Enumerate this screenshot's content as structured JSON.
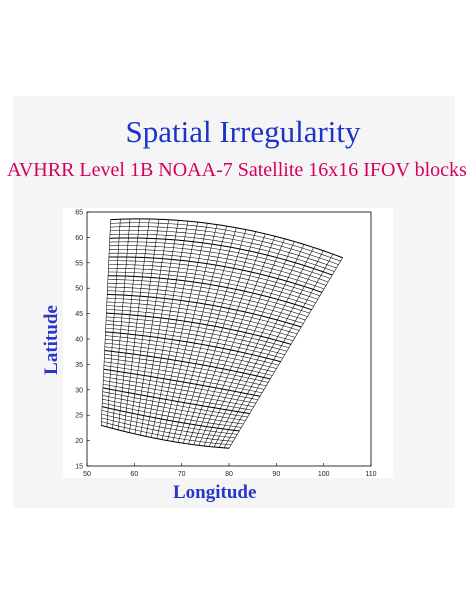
{
  "slide": {
    "title": "Spatial Irregularity",
    "subtitle": "AVHRR Level 1B NOAA-7 Satellite 16x16 IFOV blocks"
  },
  "chart_data": {
    "type": "line",
    "title": "",
    "xlabel": "Longitude",
    "ylabel": "Latitude",
    "xlim": [
      50,
      110
    ],
    "ylim": [
      15,
      65
    ],
    "xticks": [
      50,
      60,
      70,
      80,
      90,
      100,
      110
    ],
    "yticks": [
      15,
      20,
      25,
      30,
      35,
      40,
      45,
      50,
      55,
      60,
      65
    ],
    "grid": false,
    "legend": "none",
    "swath_corners": {
      "top_left": [
        55,
        63.5
      ],
      "top_right": [
        104,
        56
      ],
      "bottom_left": [
        53,
        23
      ],
      "bottom_right": [
        80,
        18.5
      ]
    },
    "block_rows": 55,
    "block_cols": 24,
    "line_color": "#000000"
  }
}
